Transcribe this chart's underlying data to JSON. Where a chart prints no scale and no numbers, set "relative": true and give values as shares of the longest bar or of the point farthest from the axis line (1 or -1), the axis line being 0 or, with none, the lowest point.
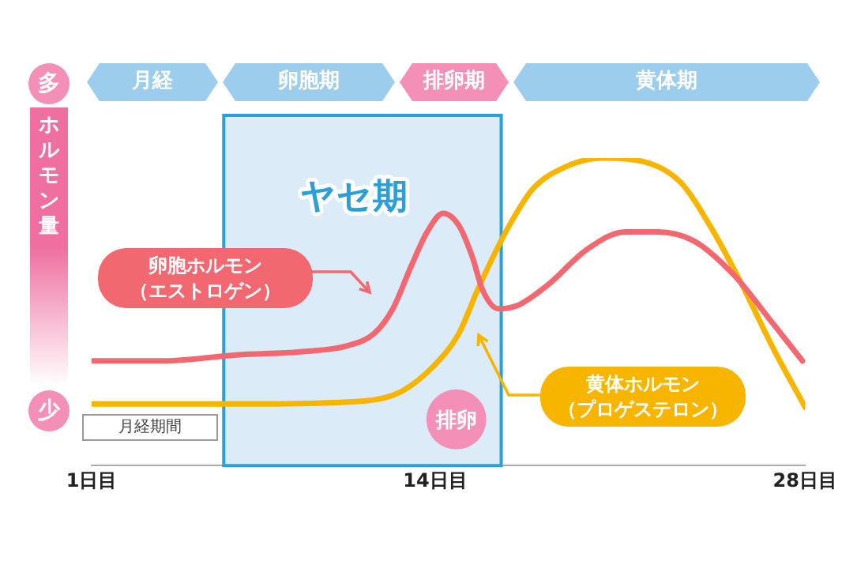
{
  "chart_data": {
    "type": "line",
    "relative": true,
    "ylabel": "ホルモン量",
    "xlim": [
      1,
      28
    ],
    "xticks": [
      {
        "value": 1,
        "label": "1日目"
      },
      {
        "value": 14,
        "label": "14日目"
      },
      {
        "value": 28,
        "label": "28日目"
      }
    ],
    "series": [
      {
        "name": "卵胞ホルモン（エストロゲン）",
        "color": "#f26870",
        "x": [
          1,
          3.6,
          6.6,
          8.9,
          10.7,
          11.7,
          12.4,
          13.1,
          13.7,
          14.3,
          14.9,
          15.4,
          15.8,
          16.4,
          17.1,
          18.3,
          19.7,
          21.2,
          22.4,
          23.8,
          25.3,
          26.8,
          27.9
        ],
        "values": [
          0.34,
          0.34,
          0.36,
          0.37,
          0.39,
          0.43,
          0.51,
          0.65,
          0.76,
          0.82,
          0.78,
          0.68,
          0.57,
          0.51,
          0.52,
          0.59,
          0.7,
          0.76,
          0.76,
          0.73,
          0.62,
          0.46,
          0.34
        ]
      },
      {
        "name": "黄体ホルモン（プロゲステロン）",
        "color": "#f8b500",
        "x": [
          1,
          6.6,
          11.3,
          12.7,
          13.9,
          14.9,
          15.6,
          16.2,
          16.8,
          17.7,
          18.9,
          20.3,
          21.8,
          23.3,
          24.4,
          25.6,
          26.8,
          28
        ],
        "values": [
          0.2,
          0.2,
          0.21,
          0.24,
          0.32,
          0.43,
          0.57,
          0.68,
          0.78,
          0.9,
          0.97,
          1,
          0.99,
          0.92,
          0.78,
          0.59,
          0.38,
          0.19
        ]
      }
    ],
    "bands": [
      {
        "axis": "x",
        "from": 6,
        "to": 16.5,
        "label": "ヤセ期",
        "color": "#dcebf8"
      }
    ],
    "annotations": [
      "多",
      "少",
      "月経期間",
      "月経",
      "卵胞期",
      "排卵期",
      "黄体期",
      {
        "text": "排卵",
        "x": 14.8,
        "y": 0.15
      }
    ],
    "legend": "left",
    "marker": "none",
    "line_style": "solid",
    "grid": false
  }
}
